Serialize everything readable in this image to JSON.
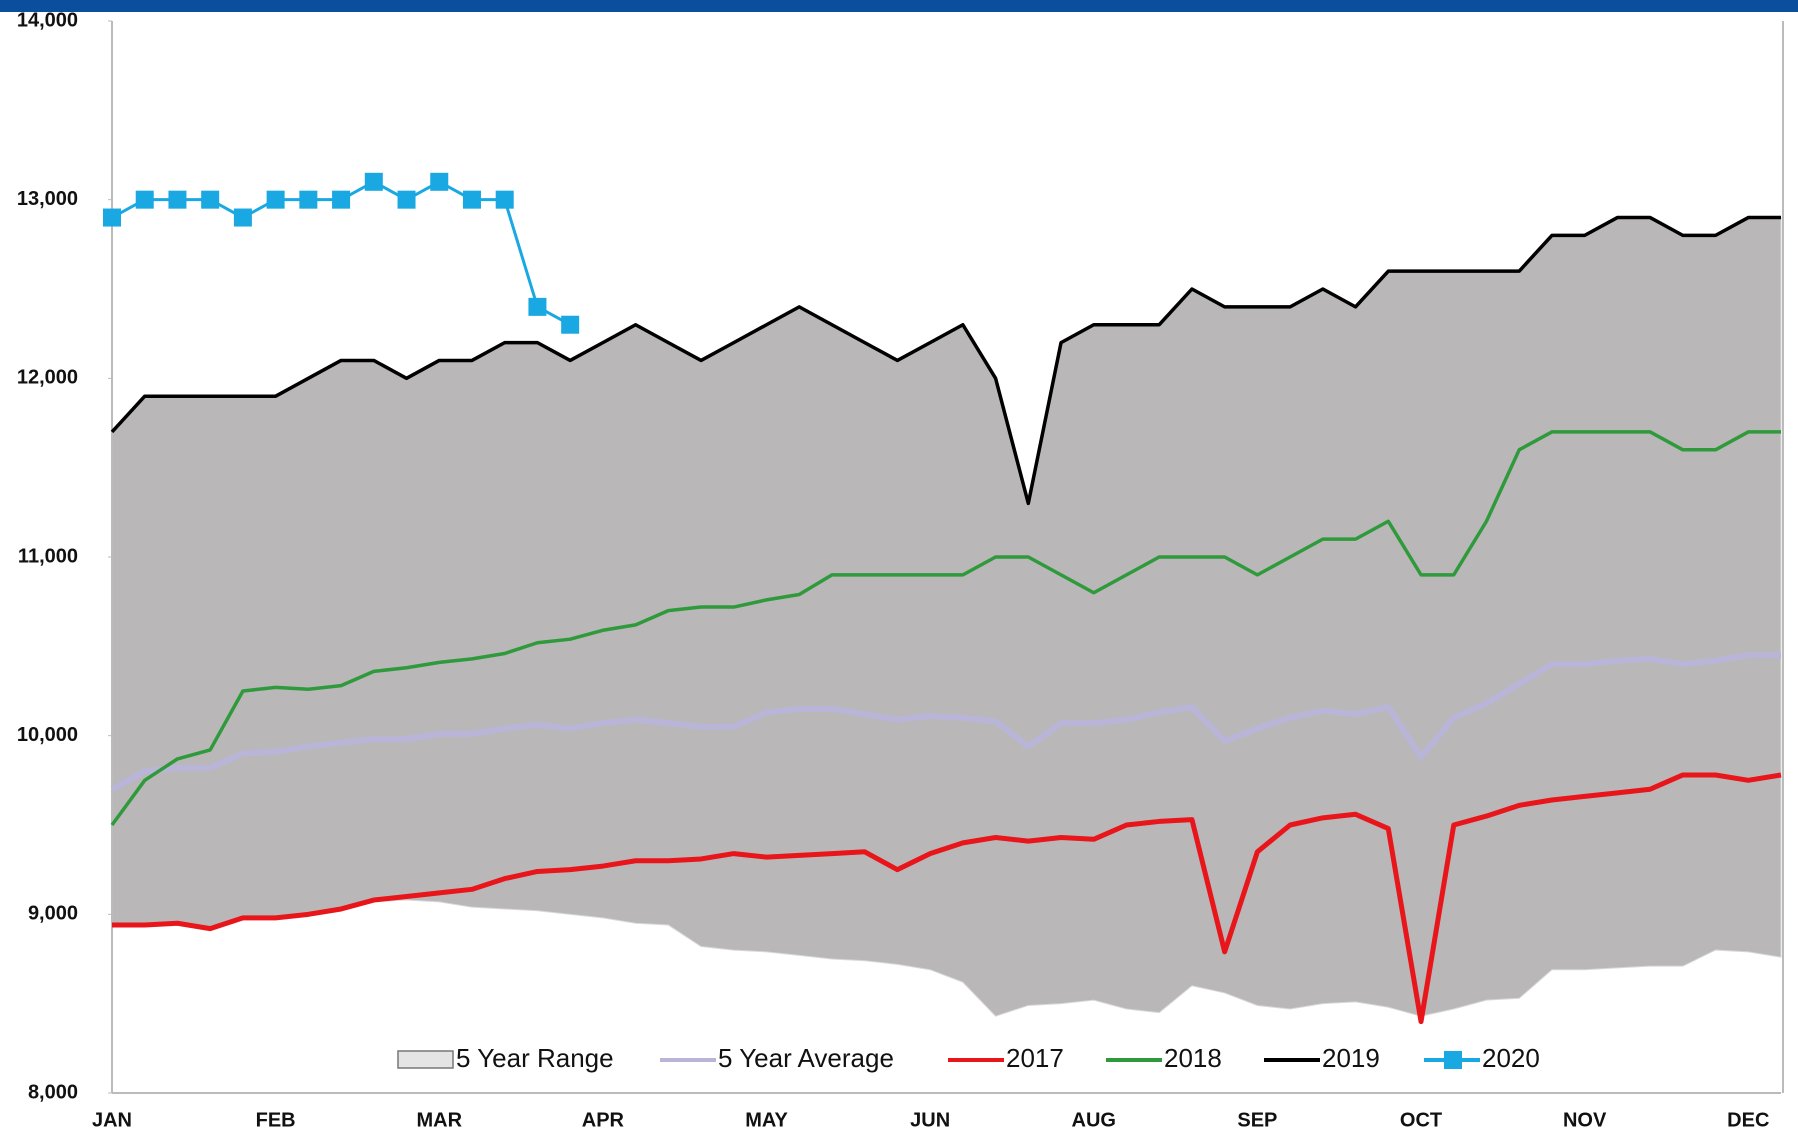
{
  "chart_data": {
    "type": "line",
    "categories": [
      "JAN",
      null,
      null,
      null,
      null,
      "FEB",
      null,
      null,
      null,
      null,
      "MAR",
      null,
      null,
      null,
      null,
      "APR",
      null,
      null,
      null,
      null,
      "MAY",
      null,
      null,
      null,
      null,
      "JUN",
      null,
      null,
      null,
      null,
      "AUG",
      null,
      null,
      null,
      null,
      "SEP",
      null,
      null,
      null,
      null,
      "OCT",
      null,
      null,
      null,
      null,
      "NOV",
      null,
      null,
      null,
      null,
      "DEC",
      null
    ],
    "ylim": [
      8000,
      14000
    ],
    "yticks": [
      {
        "value": 8000,
        "label": "8,000"
      },
      {
        "value": 9000,
        "label": "9,000"
      },
      {
        "value": 10000,
        "label": "10,000"
      },
      {
        "value": 11000,
        "label": "11,000"
      },
      {
        "value": 12000,
        "label": "12,000"
      },
      {
        "value": 13000,
        "label": "13,000"
      },
      {
        "value": 14000,
        "label": "14,000"
      }
    ],
    "legend": "bottom",
    "series": [
      {
        "name": "5 Year Range",
        "color": "#bab7b8",
        "low": [
          8940,
          8940,
          8950,
          8920,
          8980,
          8980,
          9000,
          9030,
          9070,
          9080,
          9070,
          9040,
          9030,
          9020,
          9000,
          8980,
          8950,
          8940,
          8820,
          8800,
          8790,
          8770,
          8750,
          8740,
          8720,
          8690,
          8620,
          8430,
          8490,
          8500,
          8520,
          8470,
          8450,
          8600,
          8560,
          8490,
          8470,
          8500,
          8510,
          8480,
          8430,
          8470,
          8520,
          8530,
          8690,
          8690,
          8700,
          8710,
          8710,
          8800,
          8790,
          8760
        ],
        "high": [
          11700,
          11900,
          11900,
          11900,
          11900,
          11900,
          12000,
          12100,
          12100,
          12000,
          12100,
          12100,
          12200,
          12200,
          12100,
          12200,
          12300,
          12200,
          12100,
          12200,
          12300,
          12400,
          12300,
          12200,
          12100,
          12200,
          12300,
          12000,
          11300,
          12200,
          12300,
          12300,
          12300,
          12500,
          12400,
          12400,
          12400,
          12500,
          12400,
          12600,
          12600,
          12600,
          12600,
          12600,
          12800,
          12800,
          12900,
          12900,
          12800,
          12800,
          12900,
          12900
        ]
      },
      {
        "name": "5 Year Average",
        "color": "#b9b5d9",
        "values": [
          9700,
          9800,
          9820,
          9820,
          9900,
          9910,
          9940,
          9960,
          9980,
          9980,
          10010,
          10010,
          10040,
          10060,
          10040,
          10070,
          10090,
          10070,
          10050,
          10050,
          10130,
          10150,
          10150,
          10120,
          10090,
          10110,
          10100,
          10080,
          9940,
          10070,
          10070,
          10090,
          10130,
          10160,
          9970,
          10040,
          10100,
          10140,
          10120,
          10160,
          9880,
          10100,
          10180,
          10290,
          10400,
          10400,
          10420,
          10430,
          10400,
          10420,
          10450,
          10450
        ]
      },
      {
        "name": "2017",
        "color": "#e8151b",
        "values": [
          8940,
          8940,
          8950,
          8920,
          8980,
          8980,
          9000,
          9030,
          9080,
          9100,
          9120,
          9140,
          9200,
          9240,
          9250,
          9270,
          9300,
          9300,
          9310,
          9340,
          9320,
          9330,
          9340,
          9350,
          9250,
          9340,
          9400,
          9430,
          9410,
          9430,
          9420,
          9500,
          9520,
          9530,
          8790,
          9350,
          9500,
          9540,
          9560,
          9480,
          8400,
          9500,
          9550,
          9610,
          9640,
          9660,
          9680,
          9700,
          9780,
          9780,
          9750,
          9780
        ]
      },
      {
        "name": "2018",
        "color": "#2f9a3b",
        "values": [
          9500,
          9750,
          9870,
          9920,
          10250,
          10270,
          10260,
          10280,
          10360,
          10380,
          10410,
          10430,
          10460,
          10520,
          10540,
          10590,
          10620,
          10700,
          10720,
          10720,
          10760,
          10790,
          10900,
          10900,
          10900,
          10900,
          10900,
          11000,
          11000,
          10900,
          10800,
          10900,
          11000,
          11000,
          11000,
          10900,
          11000,
          11100,
          11100,
          11200,
          10900,
          10900,
          11200,
          11600,
          11700,
          11700,
          11700,
          11700,
          11600,
          11600,
          11700,
          11700
        ]
      },
      {
        "name": "2019",
        "color": "#000000",
        "values": [
          11700,
          11900,
          11900,
          11900,
          11900,
          11900,
          12000,
          12100,
          12100,
          12000,
          12100,
          12100,
          12200,
          12200,
          12100,
          12200,
          12300,
          12200,
          12100,
          12200,
          12300,
          12400,
          12300,
          12200,
          12100,
          12200,
          12300,
          12000,
          11300,
          12200,
          12300,
          12300,
          12300,
          12500,
          12400,
          12400,
          12400,
          12500,
          12400,
          12600,
          12600,
          12600,
          12600,
          12600,
          12800,
          12800,
          12900,
          12900,
          12800,
          12800,
          12900,
          12900
        ]
      },
      {
        "name": "2020",
        "color": "#1aa8e2",
        "values": [
          12900,
          13000,
          13000,
          13000,
          12900,
          13000,
          13000,
          13000,
          13100,
          13000,
          13100,
          13000,
          13000,
          12400,
          12300,
          null,
          null,
          null,
          null,
          null,
          null,
          null,
          null,
          null,
          null,
          null,
          null,
          null,
          null,
          null,
          null,
          null,
          null,
          null,
          null,
          null,
          null,
          null,
          null,
          null,
          null,
          null,
          null,
          null,
          null,
          null,
          null,
          null,
          null,
          null,
          null,
          null
        ]
      }
    ]
  }
}
